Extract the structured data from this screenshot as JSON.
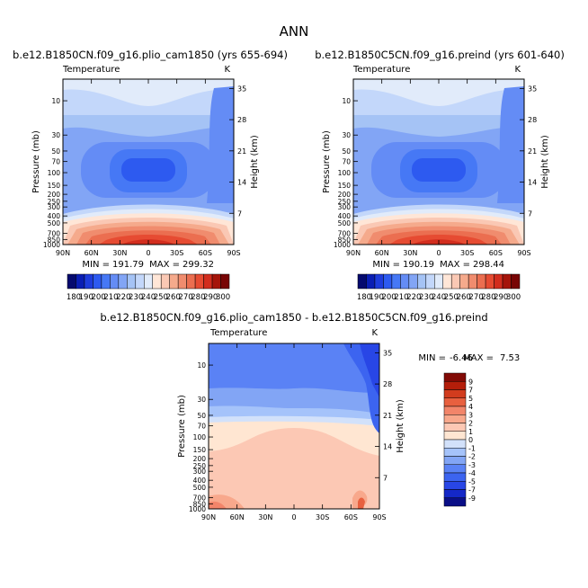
{
  "figure_title": "ANN",
  "colors": {
    "main_scale": [
      "#050a6e",
      "#0a1eb4",
      "#1e3cdc",
      "#2d5af0",
      "#4678f5",
      "#648cf5",
      "#82a5f5",
      "#a5c3f5",
      "#c3d7fa",
      "#e1ebfa",
      "#ffe6d7",
      "#fac8b4",
      "#f5aa8c",
      "#f08c6e",
      "#eb6e50",
      "#e64b32",
      "#d22d1e",
      "#a5140a",
      "#780505"
    ],
    "diff_scale": [
      "#0a0f87",
      "#1428c8",
      "#2846e6",
      "#3c64f0",
      "#5a82f5",
      "#82a5f5",
      "#a5c3fa",
      "#d2e1fa",
      "#ffe6d2",
      "#fcc8b4",
      "#f8a88c",
      "#f2856a",
      "#e8603f",
      "#d23c1e",
      "#b41e0a",
      "#820a05"
    ]
  },
  "chart_data": [
    {
      "type": "heatmap",
      "subtitle": "b.e12.B1850CN.f09_g16.plio_cam1850 (yrs 655-694)",
      "variable": "Temperature",
      "units": "K",
      "ylabel": "Pressure (mb)",
      "ylabel_right": "Height (km)",
      "x_ticks": [
        "90N",
        "60N",
        "30N",
        "0",
        "30S",
        "60S",
        "90S"
      ],
      "y_ticks": [
        "10",
        "30",
        "50",
        "70",
        "100",
        "150",
        "200",
        "250",
        "300",
        "400",
        "500",
        "700",
        "850",
        "1000"
      ],
      "y_ticks_right": [
        "35",
        "28",
        "21",
        "14",
        "7"
      ],
      "stats": {
        "min_label": "MIN =",
        "min": "191.79",
        "max_label": "MAX =",
        "max": "299.32"
      },
      "colorbar": {
        "labels": [
          "180",
          "190",
          "200",
          "210",
          "220",
          "230",
          "240",
          "250",
          "260",
          "270",
          "280",
          "290",
          "300"
        ],
        "range": [
          180,
          300
        ]
      }
    },
    {
      "type": "heatmap",
      "subtitle": "b.e12.B1850C5CN.f09_g16.preind (yrs 601-640)",
      "variable": "Temperature",
      "units": "K",
      "ylabel": "Pressure (mb)",
      "ylabel_right": "Height (km)",
      "x_ticks": [
        "90N",
        "60N",
        "30N",
        "0",
        "30S",
        "60S",
        "90S"
      ],
      "y_ticks": [
        "10",
        "30",
        "50",
        "70",
        "100",
        "150",
        "200",
        "250",
        "300",
        "400",
        "500",
        "700",
        "850",
        "1000"
      ],
      "y_ticks_right": [
        "35",
        "28",
        "21",
        "14",
        "7"
      ],
      "stats": {
        "min_label": "MIN =",
        "min": "190.19",
        "max_label": "MAX =",
        "max": "298.44"
      },
      "colorbar": {
        "labels": [
          "180",
          "190",
          "200",
          "210",
          "220",
          "230",
          "240",
          "250",
          "260",
          "270",
          "280",
          "290",
          "300"
        ],
        "range": [
          180,
          300
        ]
      }
    },
    {
      "type": "heatmap",
      "subtitle": "b.e12.B1850CN.f09_g16.plio_cam1850 - b.e12.B1850C5CN.f09_g16.preind",
      "variable": "Temperature",
      "units": "K",
      "ylabel": "Pressure (mb)",
      "ylabel_right": "Height (km)",
      "x_ticks": [
        "90N",
        "60N",
        "30N",
        "0",
        "30S",
        "60S",
        "90S"
      ],
      "y_ticks": [
        "10",
        "30",
        "50",
        "70",
        "100",
        "150",
        "200",
        "250",
        "300",
        "400",
        "500",
        "700",
        "850",
        "1000"
      ],
      "y_ticks_right": [
        "35",
        "28",
        "21",
        "14",
        "7"
      ],
      "stats": {
        "min_label": "MIN =",
        "min": "-6.46",
        "max_label": "MAX =",
        "max": "7.53"
      },
      "colorbar": {
        "labels": [
          "9",
          "7",
          "5",
          "4",
          "3",
          "2",
          "1",
          "0",
          "-1",
          "-2",
          "-3",
          "-4",
          "-5",
          "-7",
          "-9"
        ],
        "range": [
          -9,
          9
        ]
      }
    }
  ]
}
